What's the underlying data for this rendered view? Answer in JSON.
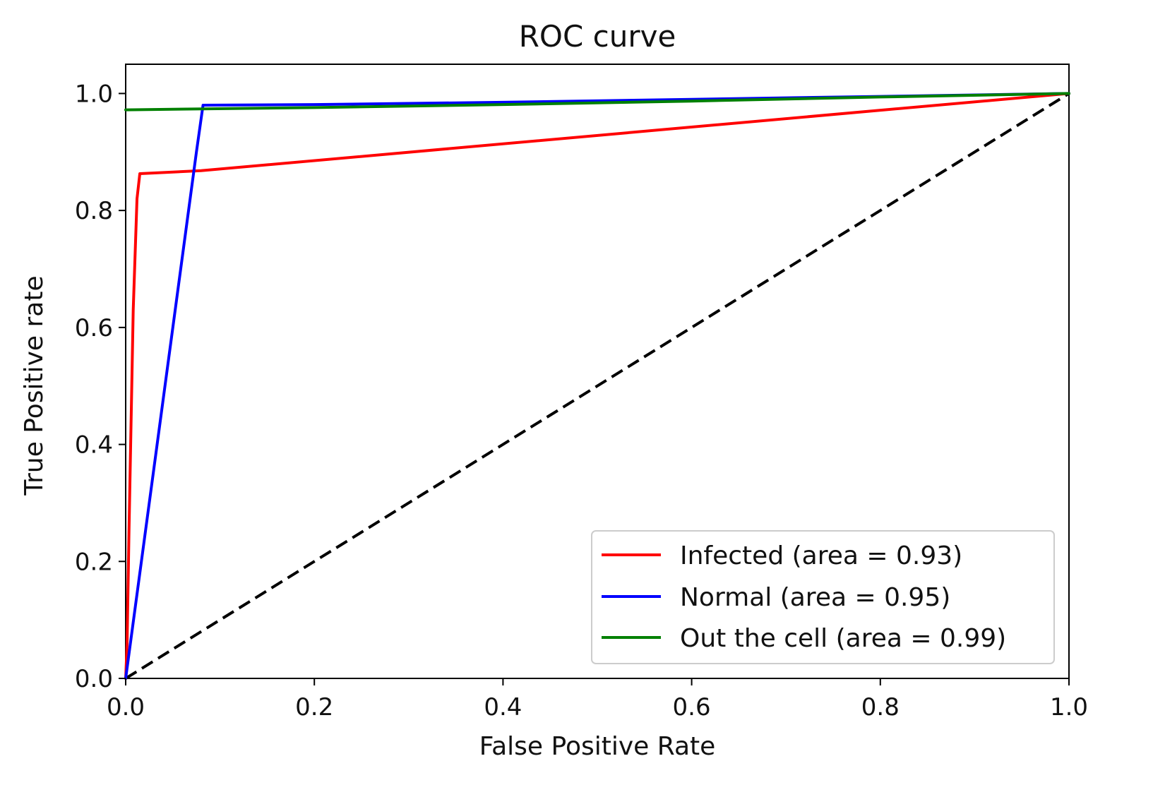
{
  "chart_data": {
    "type": "line",
    "title": "ROC curve",
    "xlabel": "False Positive Rate",
    "ylabel": "True Positive rate",
    "xlim": [
      0.0,
      1.0
    ],
    "ylim": [
      0.0,
      1.05
    ],
    "xticks": [
      "0.0",
      "0.2",
      "0.4",
      "0.6",
      "0.8",
      "1.0"
    ],
    "yticks": [
      "0.0",
      "0.2",
      "0.4",
      "0.6",
      "0.8",
      "1.0"
    ],
    "xtick_values": [
      0.0,
      0.2,
      0.4,
      0.6,
      0.8,
      1.0
    ],
    "ytick_values": [
      0.0,
      0.2,
      0.4,
      0.6,
      0.8,
      1.0
    ],
    "grid": false,
    "legend_position": "lower-right",
    "series": [
      {
        "name": "Infected",
        "label": "Infected (area = 0.93)",
        "auc": 0.93,
        "color": "#ff0000",
        "x": [
          0.0,
          0.0015,
          0.0035,
          0.008,
          0.012,
          0.015,
          0.08,
          1.0
        ],
        "y": [
          0.0,
          0.06,
          0.25,
          0.63,
          0.82,
          0.863,
          0.868,
          1.0
        ]
      },
      {
        "name": "Normal",
        "label": "Normal (area = 0.95)",
        "auc": 0.95,
        "color": "#0000ff",
        "x": [
          0.0,
          0.02,
          0.04,
          0.06,
          0.075,
          0.082,
          0.2,
          0.4,
          0.6,
          0.8,
          1.0
        ],
        "y": [
          0.0,
          0.24,
          0.48,
          0.72,
          0.9,
          0.98,
          0.981,
          0.985,
          0.99,
          0.995,
          1.0
        ]
      },
      {
        "name": "Out the cell",
        "label": "Out the cell (area = 0.99)",
        "auc": 0.99,
        "color": "#008000",
        "x": [
          0.0,
          0.2,
          0.4,
          0.6,
          0.8,
          1.0
        ],
        "y": [
          0.972,
          0.976,
          0.981,
          0.987,
          0.994,
          1.0
        ]
      }
    ],
    "reference_line": {
      "name": "chance",
      "style": "dashed",
      "color": "#000000",
      "x": [
        0.0,
        1.0
      ],
      "y": [
        0.0,
        1.0
      ]
    }
  }
}
